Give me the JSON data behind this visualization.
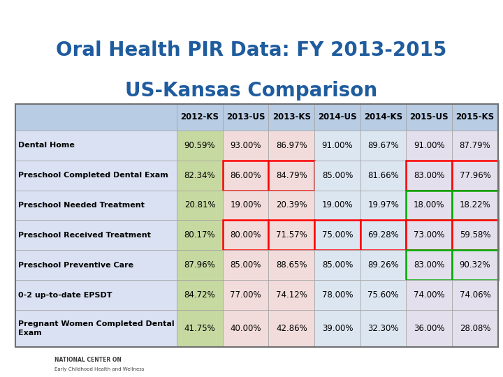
{
  "title_line1": "Oral Health PIR Data: FY 2013-2015",
  "title_line2": "US-Kansas Comparison",
  "title_color": "#1F5C9E",
  "top_bar_color": "#C0504D",
  "columns": [
    "2012-KS",
    "2013-US",
    "2013-KS",
    "2014-US",
    "2014-KS",
    "2015-US",
    "2015-KS"
  ],
  "rows": [
    {
      "label": "Dental Home",
      "values": [
        "90.59%",
        "93.00%",
        "86.97%",
        "91.00%",
        "89.67%",
        "91.00%",
        "87.79%"
      ],
      "borders": [
        null,
        null,
        null,
        null,
        null,
        null,
        null
      ]
    },
    {
      "label": "Preschool Completed Dental Exam",
      "values": [
        "82.34%",
        "86.00%",
        "84.79%",
        "85.00%",
        "81.66%",
        "83.00%",
        "77.96%"
      ],
      "borders": [
        null,
        "red",
        "red",
        null,
        null,
        "red",
        "red"
      ]
    },
    {
      "label": "Preschool Needed Treatment",
      "values": [
        "20.81%",
        "19.00%",
        "20.39%",
        "19.00%",
        "19.97%",
        "18.00%",
        "18.22%"
      ],
      "borders": [
        null,
        null,
        null,
        null,
        null,
        "green",
        "green"
      ]
    },
    {
      "label": "Preschool Received Treatment",
      "values": [
        "80.17%",
        "80.00%",
        "71.57%",
        "75.00%",
        "69.28%",
        "73.00%",
        "59.58%"
      ],
      "borders": [
        null,
        "red",
        "red",
        "red",
        "red",
        "red",
        "red"
      ]
    },
    {
      "label": "Preschool Preventive Care",
      "values": [
        "87.96%",
        "85.00%",
        "88.65%",
        "85.00%",
        "89.26%",
        "83.00%",
        "90.32%"
      ],
      "borders": [
        null,
        null,
        null,
        null,
        null,
        "green",
        "green"
      ]
    },
    {
      "label": "0-2 up-to-date EPSDT",
      "values": [
        "84.72%",
        "77.00%",
        "74.12%",
        "78.00%",
        "75.60%",
        "74.00%",
        "74.06%"
      ],
      "borders": [
        null,
        null,
        null,
        null,
        null,
        null,
        null
      ]
    },
    {
      "label": "Pregnant Women Completed Dental\nExam",
      "values": [
        "41.75%",
        "40.00%",
        "42.86%",
        "39.00%",
        "32.30%",
        "36.00%",
        "28.08%"
      ],
      "borders": [
        null,
        null,
        null,
        null,
        null,
        null,
        null
      ]
    }
  ],
  "col_bg_colors": [
    "#C6D9A0",
    "#F2DCDB",
    "#F2DCDB",
    "#DCE6F1",
    "#DCE6F1",
    "#E4DFEC",
    "#E4DFEC"
  ],
  "header_bg_color": "#B8CCE4",
  "label_bg_color": "#D9E1F2",
  "outer_border_color": "#707070",
  "background_color": "#FFFFFF"
}
